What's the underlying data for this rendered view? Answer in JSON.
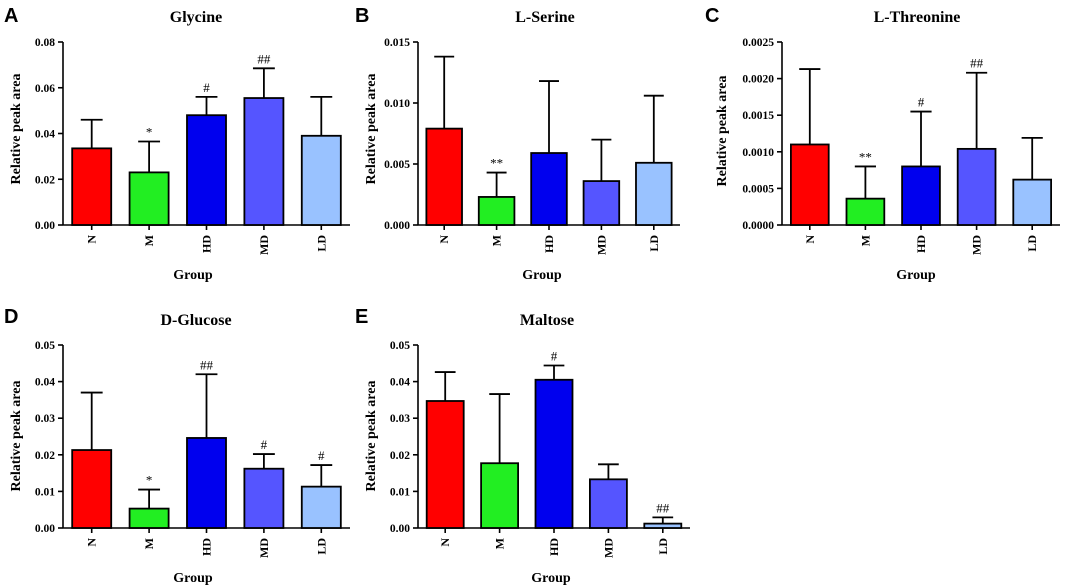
{
  "colors": {
    "N": "#ff0000",
    "M": "#22ee22",
    "HD": "#0000ee",
    "MD": "#5555ff",
    "LD": "#99c2ff"
  },
  "chart_data": [
    {
      "type": "bar",
      "panel": "A",
      "title": "Glycine",
      "xlabel": "Group",
      "ylabel": "Relative peak area",
      "categories": [
        "N",
        "M",
        "HD",
        "MD",
        "LD"
      ],
      "values": [
        0.0335,
        0.023,
        0.048,
        0.0555,
        0.039
      ],
      "errors": [
        0.0125,
        0.0135,
        0.008,
        0.013,
        0.017
      ],
      "significance": [
        "",
        "*",
        "#",
        "##",
        ""
      ],
      "ylim": [
        0,
        0.08
      ],
      "yticks": [
        0,
        0.02,
        0.04,
        0.06,
        0.08
      ],
      "ytick_labels": [
        "0.00",
        "0.02",
        "0.04",
        "0.06",
        "0.08"
      ]
    },
    {
      "type": "bar",
      "panel": "B",
      "title": "L-Serine",
      "xlabel": "Group",
      "ylabel": "Relative peak area",
      "categories": [
        "N",
        "M",
        "HD",
        "MD",
        "LD"
      ],
      "values": [
        0.0079,
        0.0023,
        0.0059,
        0.0036,
        0.0051
      ],
      "errors": [
        0.0059,
        0.002,
        0.0059,
        0.0034,
        0.0055
      ],
      "significance": [
        "",
        "**",
        "",
        "",
        ""
      ],
      "ylim": [
        0,
        0.015
      ],
      "yticks": [
        0,
        0.005,
        0.01,
        0.015
      ],
      "ytick_labels": [
        "0.000",
        "0.005",
        "0.010",
        "0.015"
      ]
    },
    {
      "type": "bar",
      "panel": "C",
      "title": "L-Threonine",
      "xlabel": "Group",
      "ylabel": "Relative peak area",
      "categories": [
        "N",
        "M",
        "HD",
        "MD",
        "LD"
      ],
      "values": [
        0.0011,
        0.00036,
        0.0008,
        0.00104,
        0.00062
      ],
      "errors": [
        0.00103,
        0.00044,
        0.00075,
        0.00104,
        0.00057
      ],
      "significance": [
        "",
        "**",
        "#",
        "##",
        ""
      ],
      "ylim": [
        0,
        0.0025
      ],
      "yticks": [
        0,
        0.0005,
        0.001,
        0.0015,
        0.002,
        0.0025
      ],
      "ytick_labels": [
        "0.0000",
        "0.0005",
        "0.0010",
        "0.0015",
        "0.0020",
        "0.0025"
      ]
    },
    {
      "type": "bar",
      "panel": "D",
      "title": "D-Glucose",
      "xlabel": "Group",
      "ylabel": "Relative peak area",
      "categories": [
        "N",
        "M",
        "HD",
        "MD",
        "LD"
      ],
      "values": [
        0.0213,
        0.0053,
        0.0246,
        0.0162,
        0.0113
      ],
      "errors": [
        0.0157,
        0.0052,
        0.0174,
        0.004,
        0.0059
      ],
      "significance": [
        "",
        "*",
        "##",
        "#",
        "#"
      ],
      "ylim": [
        0,
        0.05
      ],
      "yticks": [
        0,
        0.01,
        0.02,
        0.03,
        0.04,
        0.05
      ],
      "ytick_labels": [
        "0.00",
        "0.01",
        "0.02",
        "0.03",
        "0.04",
        "0.05"
      ]
    },
    {
      "type": "bar",
      "panel": "E",
      "title": "Maltose",
      "xlabel": "Group",
      "ylabel": "Relative peak area",
      "categories": [
        "N",
        "M",
        "HD",
        "MD",
        "LD"
      ],
      "values": [
        0.0347,
        0.0177,
        0.0405,
        0.0133,
        0.0012
      ],
      "errors": [
        0.0079,
        0.0189,
        0.0039,
        0.0041,
        0.0017
      ],
      "significance": [
        "",
        "",
        "#",
        "",
        "##"
      ],
      "ylim": [
        0,
        0.05
      ],
      "yticks": [
        0,
        0.01,
        0.02,
        0.03,
        0.04,
        0.05
      ],
      "ytick_labels": [
        "0.00",
        "0.01",
        "0.02",
        "0.03",
        "0.04",
        "0.05"
      ]
    }
  ]
}
